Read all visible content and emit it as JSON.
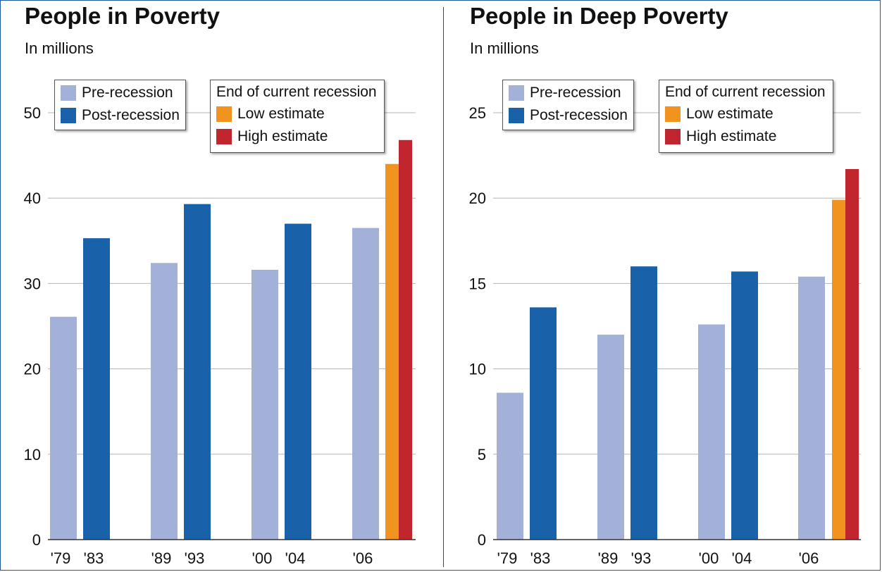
{
  "colors": {
    "pre": "#a3b1d8",
    "post": "#1961a8",
    "low": "#f0941f",
    "high": "#c1262e",
    "grid": "#b5b5b5",
    "axis": "#333333"
  },
  "legend": {
    "pre_label": "Pre-recession",
    "post_label": "Post-recession",
    "end_title": "End of current recession",
    "low_label": "Low estimate",
    "high_label": "High estimate"
  },
  "panels": {
    "poverty": {
      "title": "People in Poverty",
      "subtitle": "In millions"
    },
    "deep": {
      "title": "People in Deep Poverty",
      "subtitle": "In millions"
    }
  },
  "chart_data": [
    {
      "type": "bar",
      "title": "People in Poverty",
      "subtitle": "In millions",
      "ylim": [
        0,
        50
      ],
      "yticks": [
        0,
        10,
        20,
        30,
        40,
        50
      ],
      "grid": true,
      "legend_position": "top",
      "bars": [
        {
          "label": "'79",
          "value": 26.1,
          "kind": "pre"
        },
        {
          "label": "'83",
          "value": 35.3,
          "kind": "post"
        },
        {
          "label": "'89",
          "value": 32.4,
          "kind": "pre"
        },
        {
          "label": "'93",
          "value": 39.3,
          "kind": "post"
        },
        {
          "label": "'00",
          "value": 31.6,
          "kind": "pre"
        },
        {
          "label": "'04",
          "value": 37.0,
          "kind": "post"
        },
        {
          "label": "'06",
          "value": 36.5,
          "kind": "pre"
        },
        {
          "label": "",
          "value": 44.0,
          "kind": "low"
        },
        {
          "label": "",
          "value": 46.8,
          "kind": "high"
        }
      ]
    },
    {
      "type": "bar",
      "title": "People in Deep Poverty",
      "subtitle": "In millions",
      "ylim": [
        0,
        25
      ],
      "yticks": [
        0,
        5,
        10,
        15,
        20,
        25
      ],
      "grid": true,
      "legend_position": "top",
      "bars": [
        {
          "label": "'79",
          "value": 8.6,
          "kind": "pre"
        },
        {
          "label": "'83",
          "value": 13.6,
          "kind": "post"
        },
        {
          "label": "'89",
          "value": 12.0,
          "kind": "pre"
        },
        {
          "label": "'93",
          "value": 16.0,
          "kind": "post"
        },
        {
          "label": "'00",
          "value": 12.6,
          "kind": "pre"
        },
        {
          "label": "'04",
          "value": 15.7,
          "kind": "post"
        },
        {
          "label": "'06",
          "value": 15.4,
          "kind": "pre"
        },
        {
          "label": "",
          "value": 19.9,
          "kind": "low"
        },
        {
          "label": "",
          "value": 21.7,
          "kind": "high"
        }
      ]
    }
  ]
}
